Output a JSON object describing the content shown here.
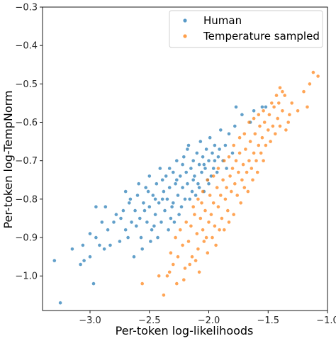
{
  "chart_data": {
    "type": "scatter",
    "title": "",
    "xlabel": "Per-token log-likelihoods",
    "ylabel": "Per-token log-TempNorm",
    "xlim": [
      -3.4,
      -1.0
    ],
    "ylim": [
      -1.09,
      -0.3
    ],
    "xticks": [
      -3.0,
      -2.5,
      -2.0,
      -1.5,
      -1.0
    ],
    "xtick_labels": [
      "−3.0",
      "−2.5",
      "−2.0",
      "−1.5",
      "−1.0"
    ],
    "yticks": [
      -1.0,
      -0.9,
      -0.8,
      -0.7,
      -0.6,
      -0.5,
      -0.4,
      -0.3
    ],
    "ytick_labels": [
      "−1.0",
      "−0.9",
      "−0.8",
      "−0.7",
      "−0.6",
      "−0.5",
      "−0.4",
      "−0.3"
    ],
    "grid": false,
    "legend_position": "top-right",
    "series": [
      {
        "name": "Human",
        "color": "#1f77b4",
        "points": [
          [
            -3.3,
            -0.96
          ],
          [
            -3.25,
            -1.07
          ],
          [
            -3.15,
            -0.93
          ],
          [
            -3.08,
            -0.97
          ],
          [
            -3.05,
            -0.96
          ],
          [
            -3.06,
            -0.92
          ],
          [
            -3.0,
            -0.89
          ],
          [
            -3.0,
            -0.95
          ],
          [
            -2.97,
            -1.02
          ],
          [
            -2.95,
            -0.9
          ],
          [
            -2.95,
            -0.82
          ],
          [
            -2.92,
            -0.92
          ],
          [
            -2.9,
            -0.86
          ],
          [
            -2.88,
            -0.93
          ],
          [
            -2.87,
            -0.82
          ],
          [
            -2.85,
            -0.88
          ],
          [
            -2.83,
            -0.92
          ],
          [
            -2.8,
            -0.86
          ],
          [
            -2.78,
            -0.84
          ],
          [
            -2.75,
            -0.91
          ],
          [
            -2.72,
            -0.83
          ],
          [
            -2.7,
            -0.88
          ],
          [
            -2.7,
            -0.78
          ],
          [
            -2.67,
            -0.81
          ],
          [
            -2.65,
            -0.86
          ],
          [
            -2.63,
            -0.95
          ],
          [
            -2.62,
            -0.83
          ],
          [
            -2.6,
            -0.79
          ],
          [
            -2.58,
            -0.85
          ],
          [
            -2.57,
            -0.9
          ],
          [
            -2.55,
            -0.81
          ],
          [
            -2.53,
            -0.77
          ],
          [
            -2.52,
            -0.86
          ],
          [
            -2.5,
            -0.82
          ],
          [
            -2.5,
            -0.74
          ],
          [
            -2.48,
            -0.88
          ],
          [
            -2.47,
            -0.79
          ],
          [
            -2.45,
            -0.84
          ],
          [
            -2.44,
            -0.76
          ],
          [
            -2.42,
            -0.81
          ],
          [
            -2.41,
            -0.72
          ],
          [
            -2.4,
            -0.86
          ],
          [
            -2.38,
            -0.78
          ],
          [
            -2.37,
            -0.83
          ],
          [
            -2.36,
            -0.74
          ],
          [
            -2.35,
            -0.8
          ],
          [
            -2.33,
            -0.77
          ],
          [
            -2.32,
            -0.85
          ],
          [
            -2.3,
            -0.73
          ],
          [
            -2.3,
            -0.81
          ],
          [
            -2.28,
            -0.76
          ],
          [
            -2.27,
            -0.7
          ],
          [
            -2.26,
            -0.79
          ],
          [
            -2.25,
            -0.84
          ],
          [
            -2.24,
            -0.74
          ],
          [
            -2.22,
            -0.77
          ],
          [
            -2.21,
            -0.69
          ],
          [
            -2.2,
            -0.8
          ],
          [
            -2.19,
            -0.73
          ],
          [
            -2.18,
            -0.76
          ],
          [
            -2.17,
            -0.66
          ],
          [
            -2.15,
            -0.72
          ],
          [
            -2.14,
            -0.78
          ],
          [
            -2.13,
            -0.7
          ],
          [
            -2.12,
            -0.74
          ],
          [
            -2.1,
            -0.68
          ],
          [
            -2.09,
            -0.76
          ],
          [
            -2.08,
            -0.71
          ],
          [
            -2.07,
            -0.65
          ],
          [
            -2.06,
            -0.73
          ],
          [
            -2.05,
            -0.69
          ],
          [
            -2.04,
            -0.78
          ],
          [
            -2.03,
            -0.72
          ],
          [
            -2.02,
            -0.67
          ],
          [
            -2.01,
            -0.75
          ],
          [
            -2.0,
            -0.7
          ],
          [
            -1.99,
            -0.64
          ],
          [
            -1.98,
            -0.74
          ],
          [
            -1.97,
            -0.68
          ],
          [
            -1.96,
            -0.72
          ],
          [
            -1.95,
            -0.66
          ],
          [
            -1.93,
            -0.73
          ],
          [
            -1.92,
            -0.69
          ],
          [
            -1.9,
            -0.62
          ],
          [
            -1.88,
            -0.7
          ],
          [
            -1.86,
            -0.66
          ],
          [
            -1.85,
            -0.72
          ],
          [
            -1.83,
            -0.63
          ],
          [
            -1.8,
            -0.68
          ],
          [
            -1.78,
            -0.61
          ],
          [
            -1.77,
            -0.56
          ],
          [
            -1.72,
            -0.58
          ],
          [
            -1.65,
            -0.6
          ],
          [
            -1.62,
            -0.57
          ],
          [
            -1.55,
            -0.56
          ],
          [
            -1.52,
            -0.56
          ],
          [
            -2.74,
            -0.85
          ],
          [
            -2.68,
            -0.9
          ],
          [
            -2.61,
            -0.87
          ],
          [
            -2.56,
            -0.93
          ],
          [
            -2.49,
            -0.91
          ],
          [
            -2.46,
            -0.87
          ],
          [
            -2.43,
            -0.9
          ],
          [
            -2.39,
            -0.8
          ],
          [
            -2.34,
            -0.88
          ],
          [
            -2.31,
            -0.82
          ],
          [
            -2.29,
            -0.86
          ],
          [
            -2.23,
            -0.82
          ],
          [
            -2.16,
            -0.8
          ],
          [
            -2.11,
            -0.79
          ],
          [
            -2.66,
            -0.8
          ],
          [
            -2.59,
            -0.76
          ],
          [
            -2.54,
            -0.83
          ],
          [
            -2.51,
            -0.78
          ],
          [
            -2.45,
            -0.8
          ],
          [
            -2.39,
            -0.75
          ],
          [
            -2.33,
            -0.72
          ],
          [
            -2.27,
            -0.75
          ],
          [
            -2.22,
            -0.71
          ],
          [
            -2.18,
            -0.67
          ],
          [
            -2.13,
            -0.75
          ],
          [
            -2.08,
            -0.77
          ],
          [
            -2.04,
            -0.71
          ],
          [
            -2.0,
            -0.76
          ],
          [
            -1.95,
            -0.7
          ],
          [
            -1.91,
            -0.67
          ]
        ]
      },
      {
        "name": "Temperature sampled",
        "color": "#ff7f0e",
        "points": [
          [
            -2.56,
            -1.02
          ],
          [
            -2.42,
            -1.0
          ],
          [
            -2.38,
            -1.05
          ],
          [
            -2.35,
            -1.0
          ],
          [
            -2.32,
            -0.94
          ],
          [
            -2.3,
            -0.97
          ],
          [
            -2.28,
            -0.9
          ],
          [
            -2.26,
            -0.95
          ],
          [
            -2.24,
            -0.88
          ],
          [
            -2.22,
            -0.92
          ],
          [
            -2.2,
            -0.98
          ],
          [
            -2.19,
            -0.86
          ],
          [
            -2.17,
            -0.91
          ],
          [
            -2.15,
            -0.87
          ],
          [
            -2.14,
            -0.95
          ],
          [
            -2.12,
            -0.84
          ],
          [
            -2.1,
            -0.89
          ],
          [
            -2.09,
            -0.93
          ],
          [
            -2.07,
            -0.85
          ],
          [
            -2.06,
            -0.81
          ],
          [
            -2.05,
            -0.88
          ],
          [
            -2.03,
            -0.83
          ],
          [
            -2.02,
            -0.9
          ],
          [
            -2.0,
            -0.86
          ],
          [
            -1.99,
            -0.79
          ],
          [
            -1.98,
            -0.84
          ],
          [
            -1.96,
            -0.81
          ],
          [
            -1.95,
            -0.87
          ],
          [
            -1.93,
            -0.77
          ],
          [
            -1.92,
            -0.82
          ],
          [
            -1.9,
            -0.79
          ],
          [
            -1.89,
            -0.85
          ],
          [
            -1.88,
            -0.75
          ],
          [
            -1.86,
            -0.8
          ],
          [
            -1.85,
            -0.77
          ],
          [
            -1.84,
            -0.83
          ],
          [
            -1.82,
            -0.74
          ],
          [
            -1.81,
            -0.78
          ],
          [
            -1.8,
            -0.72
          ],
          [
            -1.78,
            -0.76
          ],
          [
            -1.77,
            -0.7
          ],
          [
            -1.76,
            -0.79
          ],
          [
            -1.75,
            -0.73
          ],
          [
            -1.74,
            -0.68
          ],
          [
            -1.72,
            -0.75
          ],
          [
            -1.71,
            -0.71
          ],
          [
            -1.7,
            -0.77
          ],
          [
            -1.69,
            -0.67
          ],
          [
            -1.68,
            -0.73
          ],
          [
            -1.66,
            -0.7
          ],
          [
            -1.65,
            -0.65
          ],
          [
            -1.64,
            -0.72
          ],
          [
            -1.62,
            -0.68
          ],
          [
            -1.61,
            -0.63
          ],
          [
            -1.6,
            -0.7
          ],
          [
            -1.58,
            -0.66
          ],
          [
            -1.57,
            -0.61
          ],
          [
            -1.56,
            -0.68
          ],
          [
            -1.55,
            -0.64
          ],
          [
            -1.53,
            -0.6
          ],
          [
            -1.52,
            -0.66
          ],
          [
            -1.5,
            -0.62
          ],
          [
            -1.49,
            -0.58
          ],
          [
            -1.48,
            -0.65
          ],
          [
            -1.46,
            -0.61
          ],
          [
            -1.45,
            -0.56
          ],
          [
            -1.44,
            -0.63
          ],
          [
            -1.42,
            -0.59
          ],
          [
            -1.41,
            -0.55
          ],
          [
            -1.4,
            -0.61
          ],
          [
            -1.38,
            -0.57
          ],
          [
            -1.36,
            -0.53
          ],
          [
            -1.35,
            -0.62
          ],
          [
            -1.32,
            -0.58
          ],
          [
            -1.3,
            -0.55
          ],
          [
            -1.25,
            -0.57
          ],
          [
            -1.2,
            -0.52
          ],
          [
            -1.17,
            -0.56
          ],
          [
            -1.15,
            -0.5
          ],
          [
            -1.12,
            -0.47
          ],
          [
            -1.08,
            -0.48
          ],
          [
            -1.4,
            -0.51
          ],
          [
            -1.38,
            -0.52
          ],
          [
            -2.27,
            -1.02
          ],
          [
            -2.33,
            -0.99
          ],
          [
            -2.21,
            -1.01
          ],
          [
            -2.16,
            -0.97
          ],
          [
            -2.11,
            -0.96
          ],
          [
            -2.08,
            -0.99
          ],
          [
            -2.04,
            -0.91
          ],
          [
            -2.01,
            -0.94
          ],
          [
            -1.97,
            -0.9
          ],
          [
            -1.94,
            -0.92
          ],
          [
            -1.91,
            -0.88
          ],
          [
            -1.87,
            -0.88
          ],
          [
            -1.83,
            -0.86
          ],
          [
            -1.79,
            -0.84
          ],
          [
            -1.73,
            -0.81
          ],
          [
            -1.67,
            -0.78
          ],
          [
            -1.63,
            -0.75
          ],
          [
            -1.59,
            -0.73
          ],
          [
            -1.54,
            -0.7
          ],
          [
            -2.13,
            -0.82
          ],
          [
            -2.09,
            -0.8
          ],
          [
            -2.05,
            -0.78
          ],
          [
            -2.01,
            -0.75
          ],
          [
            -1.96,
            -0.74
          ],
          [
            -1.92,
            -0.72
          ],
          [
            -1.87,
            -0.7
          ],
          [
            -1.83,
            -0.69
          ],
          [
            -1.79,
            -0.66
          ],
          [
            -1.74,
            -0.64
          ],
          [
            -1.7,
            -0.63
          ],
          [
            -1.66,
            -0.6
          ],
          [
            -1.62,
            -0.59
          ],
          [
            -1.58,
            -0.58
          ],
          [
            -1.54,
            -0.57
          ],
          [
            -1.47,
            -0.55
          ],
          [
            -1.43,
            -0.53
          ],
          [
            -1.33,
            -0.6
          ]
        ]
      }
    ]
  }
}
